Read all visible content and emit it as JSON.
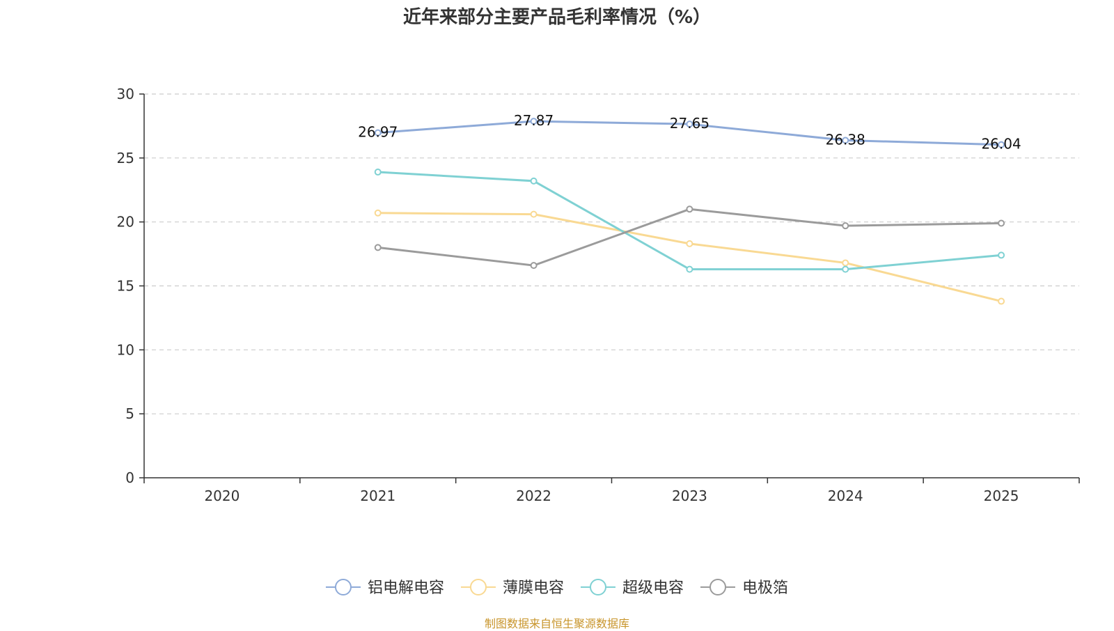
{
  "chart_data": {
    "type": "line",
    "title": "近年来部分主要产品毛利率情况（%）",
    "categories": [
      "2020",
      "2021",
      "2022",
      "2023",
      "2024",
      "2025"
    ],
    "ylim": [
      0,
      30
    ],
    "yticks": [
      0,
      5,
      10,
      15,
      20,
      25,
      30
    ],
    "grid": true,
    "legend_position": "bottom",
    "series": [
      {
        "name": "铝电解电容",
        "color": "#8eaad8",
        "values": [
          null,
          26.97,
          27.87,
          27.65,
          26.38,
          26.04
        ],
        "show_labels": true
      },
      {
        "name": "薄膜电容",
        "color": "#f9d993",
        "values": [
          null,
          20.7,
          20.6,
          18.3,
          16.8,
          13.8
        ],
        "show_labels": false
      },
      {
        "name": "超级电容",
        "color": "#7fd1d3",
        "values": [
          null,
          23.9,
          23.2,
          16.3,
          16.3,
          17.4
        ],
        "show_labels": false
      },
      {
        "name": "电极箔",
        "color": "#9b9b9b",
        "values": [
          null,
          18.0,
          16.6,
          21.0,
          19.7,
          19.9
        ],
        "show_labels": false
      }
    ],
    "source": "制图数据来自恒生聚源数据库"
  }
}
